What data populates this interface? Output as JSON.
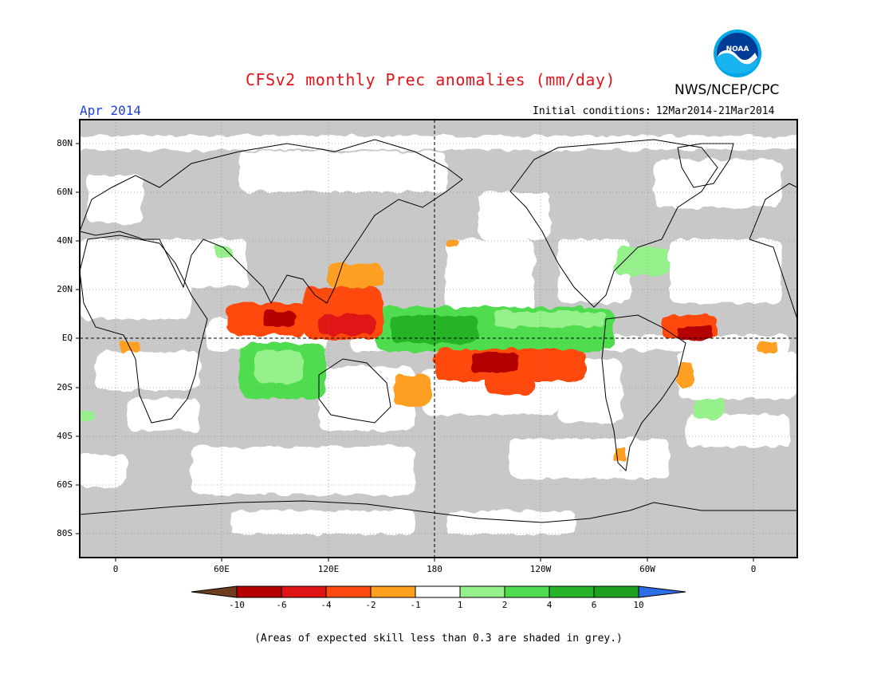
{
  "header": {
    "title": "CFSv2 monthly Prec anomalies (mm/day)",
    "agency": "NWS/NCEP/CPC",
    "logo_text": "NOAA",
    "period": "Apr 2014",
    "init_label": "Initial conditions:",
    "init_value": "12Mar2014-21Mar2014"
  },
  "map": {
    "projection": "equirectangular",
    "lon_range": [
      -20,
      382
    ],
    "lat_range": [
      -90,
      90
    ],
    "lat_ticks": [
      "80N",
      "60N",
      "40N",
      "20N",
      "EQ",
      "20S",
      "40S",
      "60S",
      "80S"
    ],
    "lon_ticks": [
      "0",
      "60E",
      "120E",
      "180",
      "120W",
      "60W",
      "0"
    ],
    "grid": "dotted 20° lines, dashed equator and dateline",
    "skill_shading_color": "#c8c8c8",
    "anomaly_regions": [
      {
        "region": "Central equatorial Pacific south of equator",
        "anomaly": "dry",
        "max_class": "-6"
      },
      {
        "region": "Bay of Bengal / Indochina",
        "anomaly": "dry",
        "max_class": "-6"
      },
      {
        "region": "Philippine Sea / western tropical Pacific",
        "anomaly": "dry",
        "max_class": "-4"
      },
      {
        "region": "Tropical Atlantic north of Brazil",
        "anomaly": "dry",
        "max_class": "-6"
      },
      {
        "region": "Equatorial western-central Pacific",
        "anomaly": "wet",
        "max_class": "6"
      },
      {
        "region": "Eastern Indian Ocean",
        "anomaly": "wet",
        "max_class": "2"
      },
      {
        "region": "Eastern tropical Pacific",
        "anomaly": "wet",
        "max_class": "2"
      }
    ]
  },
  "legend": {
    "levels": [
      "-10",
      "-6",
      "-4",
      "-2",
      "-1",
      "1",
      "2",
      "4",
      "6",
      "10"
    ],
    "colors": [
      "#6e3c1e",
      "#b40000",
      "#e01414",
      "#ff4a10",
      "#ffa020",
      "#ffffff",
      "#96f08c",
      "#50dc50",
      "#28b428",
      "#1ea01e",
      "#2d6ee6"
    ]
  },
  "footnote": "(Areas of expected skill less than 0.3 are shaded in grey.)"
}
